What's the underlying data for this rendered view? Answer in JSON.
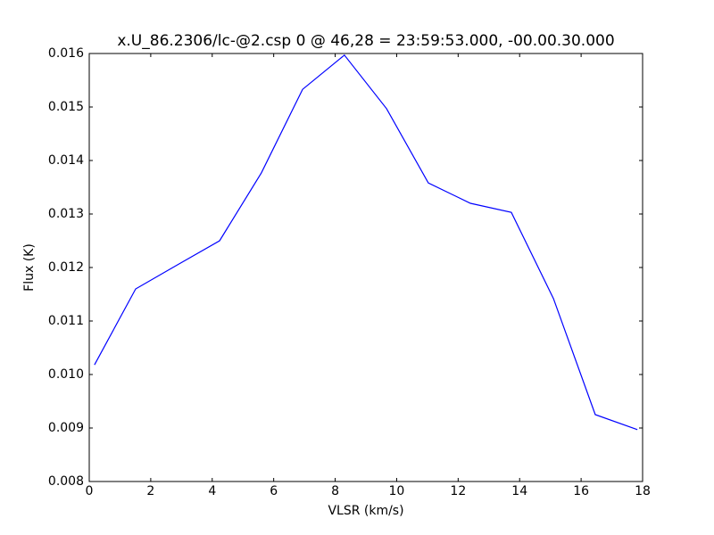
{
  "chart_data": {
    "type": "line",
    "title": "x.U_86.2306/lc-@2.csp 0 @ 46,28 = 23:59:53.000, -00.00.30.000",
    "x_label": "VLSR (km/s)",
    "y_label": "Flux (K)",
    "x": [
      0.17,
      1.51,
      2.87,
      4.24,
      5.6,
      6.94,
      8.3,
      9.67,
      11.03,
      12.4,
      13.73,
      15.1,
      16.46,
      17.83
    ],
    "series": [
      {
        "color": "#0000ff",
        "values": [
          0.01018,
          0.0116,
          0.01205,
          0.0125,
          0.01377,
          0.01533,
          0.01597,
          0.01497,
          0.01358,
          0.0132,
          0.01303,
          0.01142,
          0.00925,
          0.00897
        ]
      }
    ],
    "xlim": [
      0,
      18
    ],
    "xticks": [
      0,
      2,
      4,
      6,
      8,
      10,
      12,
      14,
      16,
      18
    ],
    "ylim": [
      0.008,
      0.016
    ],
    "yticks": [
      0.008,
      0.009,
      {
        "value": 0.01,
        "label": "0.010"
      },
      0.011,
      0.012,
      0.013,
      0.014,
      0.015,
      0.016
    ],
    "grid": false
  }
}
